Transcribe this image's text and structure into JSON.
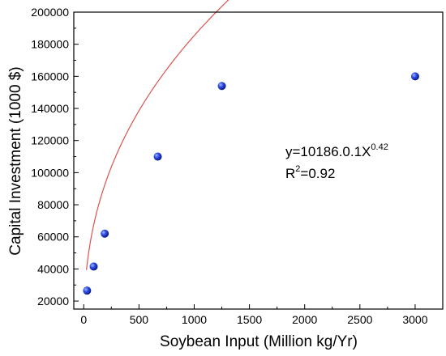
{
  "chart_data": {
    "type": "scatter",
    "title": "",
    "xlabel": "Soybean Input (Million kg/Yr)",
    "ylabel": "Capital Investment (1000 $)",
    "xlim": [
      -90,
      3250
    ],
    "ylim": [
      15000,
      200000
    ],
    "x_ticks": [
      0,
      500,
      1000,
      1500,
      2000,
      2500,
      3000
    ],
    "y_ticks": [
      20000,
      40000,
      60000,
      80000,
      100000,
      120000,
      140000,
      160000,
      180000,
      200000
    ],
    "x_tick_labels": [
      "0",
      "500",
      "1000",
      "1500",
      "2000",
      "2500",
      "3000"
    ],
    "y_tick_labels": [
      "20000",
      "40000",
      "60000",
      "80000",
      "100000",
      "120000",
      "140000",
      "160000",
      "180000",
      "200000"
    ],
    "points": {
      "x": [
        30,
        90,
        190,
        670,
        1250,
        3000
      ],
      "y": [
        26500,
        41500,
        62000,
        110000,
        154000,
        160000
      ],
      "color": "#1f3fd6"
    },
    "fit": {
      "coefficient": 10186.0,
      "exponent": 0.42,
      "x_range": [
        25,
        3000
      ],
      "color": "#d9534f",
      "equation_prefix": "y=10186.0.1X",
      "equation_exponent": "0.42",
      "r2_prefix": "R",
      "r2_exponent": "2",
      "r2_value": "=0.92"
    },
    "grid": false,
    "legend": "none"
  }
}
